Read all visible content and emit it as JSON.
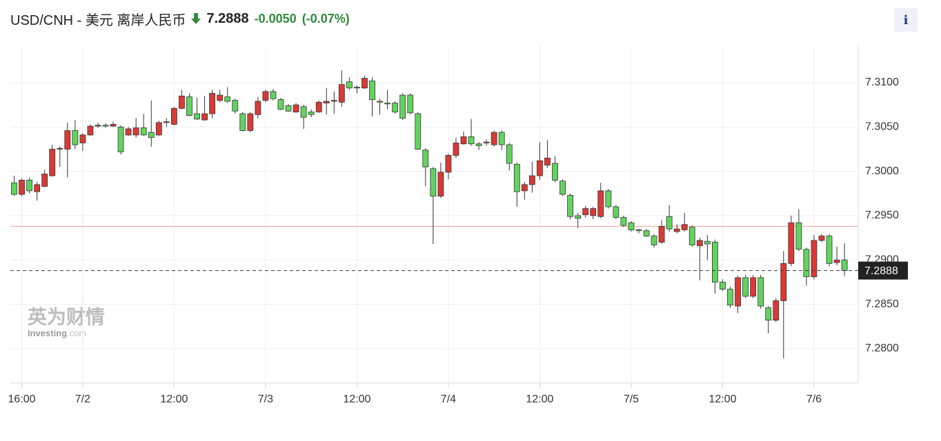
{
  "header": {
    "title": "USD/CNH - 美元 离岸人民币",
    "change": "-0.0050",
    "change_pct": "(-0.07%)",
    "info": "i"
  },
  "watermark": {
    "cn": "英为财情",
    "brand": "Investing",
    "domain": ".com"
  },
  "chart_data": {
    "type": "candlestick",
    "up_color": "#d93a36",
    "down_color": "#63d35f",
    "last_price": {
      "value": 7.2888,
      "label": "7.2888"
    },
    "ref_price": 7.2938,
    "xlim": [
      14.5,
      125.8
    ],
    "xticks": [
      {
        "value": 16,
        "label": "16:00"
      },
      {
        "value": 24,
        "label": "7/2"
      },
      {
        "value": 36,
        "label": "12:00"
      },
      {
        "value": 48,
        "label": "7/3"
      },
      {
        "value": 60,
        "label": "12:00"
      },
      {
        "value": 72,
        "label": "7/4"
      },
      {
        "value": 84,
        "label": "12:00"
      },
      {
        "value": 96,
        "label": "7/5"
      },
      {
        "value": 108,
        "label": "12:00"
      },
      {
        "value": 120,
        "label": "7/6"
      }
    ],
    "ylim": [
      7.2761,
      7.3142
    ],
    "yticks": [
      {
        "value": 7.28,
        "label": "7.2800"
      },
      {
        "value": 7.285,
        "label": "7.2850"
      },
      {
        "value": 7.29,
        "label": "7.2900"
      },
      {
        "value": 7.295,
        "label": "7.2950"
      },
      {
        "value": 7.3,
        "label": "7.3000"
      },
      {
        "value": 7.305,
        "label": "7.3050"
      },
      {
        "value": 7.31,
        "label": "7.3100"
      }
    ],
    "grid": true,
    "x": [
      15,
      16,
      17,
      18,
      19,
      20,
      21,
      22,
      23,
      24,
      25,
      26,
      27,
      28,
      29,
      30,
      31,
      32,
      33,
      34,
      35,
      36,
      37,
      38,
      39,
      40,
      41,
      42,
      43,
      44,
      45,
      46,
      47,
      48,
      49,
      50,
      51,
      52,
      53,
      54,
      55,
      56,
      57,
      58,
      59,
      60,
      61,
      62,
      63,
      64,
      65,
      66,
      67,
      68,
      69,
      70,
      71,
      72,
      73,
      74,
      75,
      76,
      77,
      78,
      79,
      80,
      81,
      82,
      83,
      84,
      85,
      86,
      87,
      88,
      89,
      90,
      91,
      92,
      93,
      94,
      95,
      96,
      97,
      98,
      99,
      100,
      101,
      102,
      103,
      104,
      105,
      106,
      107,
      108,
      109,
      110,
      111,
      112,
      113,
      114,
      115,
      116,
      117,
      118,
      119,
      120,
      121,
      122,
      123,
      124
    ],
    "open": [
      7.2987,
      7.2974,
      7.299,
      7.2977,
      7.2983,
      7.2995,
      7.3025,
      7.3025,
      7.3046,
      7.3032,
      7.3041,
      7.3051,
      7.3052,
      7.3051,
      7.305,
      7.3041,
      7.3041,
      7.3049,
      7.3044,
      7.3041,
      7.3055,
      7.3053,
      7.3071,
      7.3084,
      7.3065,
      7.3058,
      7.3065,
      7.308,
      7.3084,
      7.308,
      7.3065,
      7.3046,
      7.3064,
      7.308,
      7.309,
      7.3081,
      7.3074,
      7.3067,
      7.3073,
      7.3067,
      7.3067,
      7.3077,
      7.3079,
      7.3078,
      7.3101,
      7.3095,
      7.3094,
      7.3102,
      7.3079,
      7.3077,
      7.3077,
      7.3086,
      7.3086,
      7.3065,
      7.3024,
      7.3003,
      7.2972,
      7.2999,
      7.3018,
      7.3031,
      7.3039,
      7.3031,
      7.3032,
      7.303,
      7.3044,
      7.303,
      7.3008,
      7.2978,
      7.2985,
      7.2995,
      7.3007,
      7.3009,
      7.2989,
      7.2973,
      7.295,
      7.2951,
      7.295,
      7.2949,
      7.2978,
      7.296,
      7.2948,
      7.2942,
      7.2934,
      7.2933,
      7.2927,
      7.292,
      7.2949,
      7.2932,
      7.2934,
      7.2937,
      7.2916,
      7.2921,
      7.292,
      7.2875,
      7.2867,
      7.2848,
      7.288,
      7.2859,
      7.288,
      7.2846,
      7.2832,
      7.2854,
      7.2896,
      7.2942,
      7.2912,
      7.2881,
      7.2922,
      7.2927,
      7.2897,
      7.29
    ],
    "high": [
      7.2995,
      7.2992,
      7.2993,
      7.2988,
      7.3002,
      7.303,
      7.3028,
      7.3055,
      7.3058,
      7.3043,
      7.3053,
      7.3055,
      7.3054,
      7.3056,
      7.3052,
      7.305,
      7.306,
      7.3065,
      7.308,
      7.3057,
      7.306,
      7.3073,
      7.3092,
      7.3088,
      7.3083,
      7.3085,
      7.3092,
      7.3092,
      7.3095,
      7.3082,
      7.3067,
      7.3067,
      7.3084,
      7.3092,
      7.3093,
      7.3083,
      7.3076,
      7.3077,
      7.3075,
      7.307,
      7.308,
      7.3094,
      7.309,
      7.3114,
      7.3106,
      7.3097,
      7.3108,
      7.3106,
      7.3082,
      7.3092,
      7.3079,
      7.3088,
      7.3088,
      7.3067,
      7.3026,
      7.3005,
      7.301,
      7.302,
      7.3038,
      7.3045,
      7.3059,
      7.3033,
      7.3036,
      7.3046,
      7.3046,
      7.3032,
      7.301,
      7.2988,
      7.3011,
      7.3033,
      7.3035,
      7.3017,
      7.2991,
      7.2975,
      7.2953,
      7.2961,
      7.296,
      7.2987,
      7.298,
      7.2962,
      7.295,
      7.2944,
      7.2935,
      7.2935,
      7.2929,
      7.2945,
      7.2962,
      7.294,
      7.2953,
      7.2939,
      7.2925,
      7.2928,
      7.2923,
      7.2878,
      7.287,
      7.2882,
      7.2883,
      7.2883,
      7.2883,
      7.2848,
      7.2857,
      7.291,
      7.295,
      7.2957,
      7.2914,
      7.2928,
      7.2929,
      7.2929,
      7.2915,
      7.2919
    ],
    "low": [
      7.2972,
      7.2972,
      7.2975,
      7.2967,
      7.2982,
      7.2994,
      7.3005,
      7.2993,
      7.3025,
      7.3023,
      7.304,
      7.3049,
      7.3049,
      7.305,
      7.3019,
      7.304,
      7.3038,
      7.304,
      7.3028,
      7.304,
      7.305,
      7.3052,
      7.307,
      7.3062,
      7.3058,
      7.3057,
      7.306,
      7.3078,
      7.3077,
      7.3065,
      7.3045,
      7.3044,
      7.306,
      7.3078,
      7.308,
      7.3069,
      7.3067,
      7.3066,
      7.3048,
      7.3061,
      7.3066,
      7.3064,
      7.3065,
      7.3073,
      7.3092,
      7.3088,
      7.3093,
      7.3062,
      7.3064,
      7.307,
      7.3065,
      7.3058,
      7.3064,
      7.3024,
      7.2983,
      7.2918,
      7.297,
      7.2991,
      7.3015,
      7.303,
      7.3029,
      7.3024,
      7.3029,
      7.3028,
      7.3024,
      7.3001,
      7.296,
      7.2968,
      7.2976,
      7.299,
      7.3004,
      7.2988,
      7.2972,
      7.2946,
      7.2936,
      7.2948,
      7.2946,
      7.2947,
      7.2958,
      7.2946,
      7.2937,
      7.2932,
      7.293,
      7.2926,
      7.2914,
      7.2918,
      7.2932,
      7.293,
      7.2932,
      7.2915,
      7.2877,
      7.29,
      7.2862,
      7.2865,
      7.2846,
      7.284,
      7.2857,
      7.2857,
      7.2845,
      7.2817,
      7.283,
      7.2789,
      7.2893,
      7.291,
      7.2871,
      7.2878,
      7.292,
      7.2893,
      7.2894,
      7.2882
    ],
    "close": [
      7.2974,
      7.299,
      7.2978,
      7.2985,
      7.2997,
      7.3025,
      7.3026,
      7.3046,
      7.303,
      7.3041,
      7.3051,
      7.3052,
      7.3051,
      7.3053,
      7.3022,
      7.3048,
      7.3049,
      7.3041,
      7.3038,
      7.3055,
      7.3056,
      7.3071,
      7.3085,
      7.3063,
      7.3059,
      7.3065,
      7.3088,
      7.3086,
      7.3079,
      7.3068,
      7.3046,
      7.3065,
      7.3079,
      7.309,
      7.3082,
      7.307,
      7.3068,
      7.3075,
      7.3061,
      7.3064,
      7.3078,
      7.3079,
      7.308,
      7.3098,
      7.3094,
      7.3094,
      7.3105,
      7.3081,
      7.3078,
      7.3076,
      7.3067,
      7.306,
      7.3066,
      7.3025,
      7.3005,
      7.2972,
      7.2999,
      7.3018,
      7.3032,
      7.3039,
      7.3031,
      7.3029,
      7.3033,
      7.3044,
      7.303,
      7.3009,
      7.2977,
      7.2985,
      7.2995,
      7.3012,
      7.3015,
      7.299,
      7.2974,
      7.2949,
      7.2947,
      7.2958,
      7.2958,
      7.2978,
      7.296,
      7.2948,
      7.2939,
      7.2934,
      7.2933,
      7.2927,
      7.2917,
      7.2938,
      7.2935,
      7.2935,
      7.294,
      7.2917,
      7.2922,
      7.2918,
      7.2875,
      7.2867,
      7.2849,
      7.288,
      7.2859,
      7.288,
      7.2848,
      7.2832,
      7.2854,
      7.2896,
      7.2942,
      7.2912,
      7.2881,
      7.2922,
      7.2927,
      7.2896,
      7.29,
      7.2888
    ]
  }
}
